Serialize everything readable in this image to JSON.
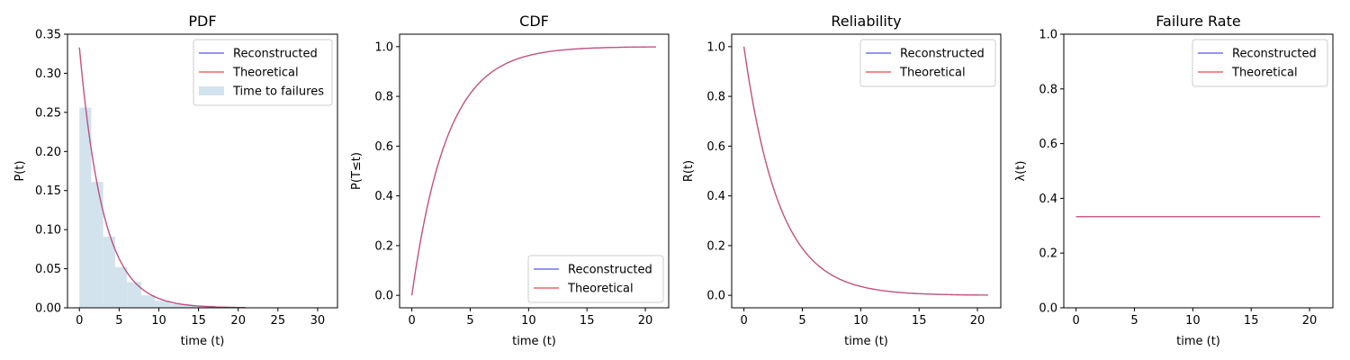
{
  "colors": {
    "reconstructed": "#5555ee",
    "theoretical": "#ee4444",
    "histogram": "#d2e3ee"
  },
  "chart_data": [
    {
      "type": "line",
      "title": "PDF",
      "xlabel": "time (t)",
      "ylabel": "P(t)",
      "xlim": [
        -1.5,
        32.5
      ],
      "ylim": [
        0,
        0.35
      ],
      "xticks": [
        "0",
        "5",
        "10",
        "15",
        "20",
        "25",
        "30"
      ],
      "yticks": [
        "0.00",
        "0.05",
        "0.10",
        "0.15",
        "0.20",
        "0.25",
        "0.30",
        "0.35"
      ],
      "legend_position": "upper right",
      "curve": {
        "func": "exp_pdf",
        "rate": 0.333,
        "x_range": [
          0,
          20.9
        ]
      },
      "series": [
        {
          "name": "Reconstructed"
        },
        {
          "name": "Theoretical"
        }
      ],
      "histogram": {
        "name": "Time to failures",
        "bins": [
          {
            "x0": 0.0,
            "x1": 1.5,
            "value": 0.256
          },
          {
            "x0": 1.5,
            "x1": 3.0,
            "value": 0.161
          },
          {
            "x0": 3.0,
            "x1": 4.5,
            "value": 0.091
          },
          {
            "x0": 4.5,
            "x1": 6.0,
            "value": 0.052
          },
          {
            "x0": 6.0,
            "x1": 7.8,
            "value": 0.033
          },
          {
            "x0": 7.8,
            "x1": 9.5,
            "value": 0.016
          },
          {
            "x0": 9.5,
            "x1": 11.5,
            "value": 0.009
          },
          {
            "x0": 11.5,
            "x1": 14.0,
            "value": 0.005
          },
          {
            "x0": 14.0,
            "x1": 17.0,
            "value": 0.003
          },
          {
            "x0": 17.0,
            "x1": 21.0,
            "value": 0.001
          }
        ]
      }
    },
    {
      "type": "line",
      "title": "CDF",
      "xlabel": "time (t)",
      "ylabel": "P(T≤t)",
      "xlim": [
        -1.05,
        22.0
      ],
      "ylim": [
        -0.05,
        1.05
      ],
      "xticks": [
        "0",
        "5",
        "10",
        "15",
        "20"
      ],
      "yticks": [
        "0.0",
        "0.2",
        "0.4",
        "0.6",
        "0.8",
        "1.0"
      ],
      "legend_position": "lower right",
      "curve": {
        "func": "exp_cdf",
        "rate": 0.333,
        "x_range": [
          0,
          20.9
        ]
      },
      "series": [
        {
          "name": "Reconstructed"
        },
        {
          "name": "Theoretical"
        }
      ]
    },
    {
      "type": "line",
      "title": "Reliability",
      "xlabel": "time (t)",
      "ylabel": "R(t)",
      "xlim": [
        -1.05,
        22.0
      ],
      "ylim": [
        -0.05,
        1.05
      ],
      "xticks": [
        "0",
        "5",
        "10",
        "15",
        "20"
      ],
      "yticks": [
        "0.0",
        "0.2",
        "0.4",
        "0.6",
        "0.8",
        "1.0"
      ],
      "legend_position": "upper right",
      "curve": {
        "func": "exp_rel",
        "rate": 0.333,
        "x_range": [
          0,
          20.9
        ]
      },
      "series": [
        {
          "name": "Reconstructed"
        },
        {
          "name": "Theoretical"
        }
      ]
    },
    {
      "type": "line",
      "title": "Failure Rate",
      "xlabel": "time (t)",
      "ylabel": "λ(t)",
      "xlim": [
        -1.05,
        22.0
      ],
      "ylim": [
        0,
        1.0
      ],
      "xticks": [
        "0",
        "5",
        "10",
        "15",
        "20"
      ],
      "yticks": [
        "0.0",
        "0.2",
        "0.4",
        "0.6",
        "0.8",
        "1.0"
      ],
      "legend_position": "upper right",
      "curve": {
        "func": "const",
        "rate": 0.333,
        "x_range": [
          0,
          20.9
        ]
      },
      "series": [
        {
          "name": "Reconstructed"
        },
        {
          "name": "Theoretical"
        }
      ]
    }
  ]
}
